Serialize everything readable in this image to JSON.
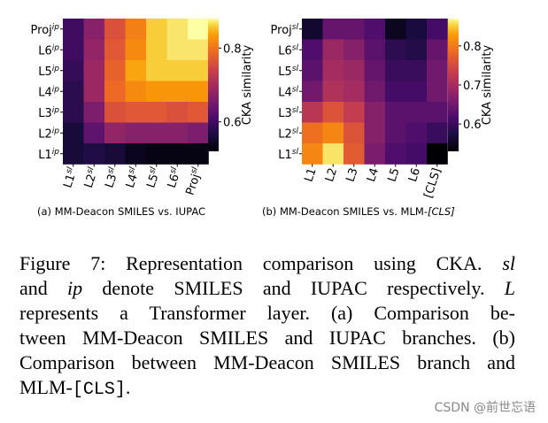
{
  "chart_data": [
    {
      "type": "heatmap",
      "x_labels": [
        {
          "base": "L1",
          "sup": "sl"
        },
        {
          "base": "L2",
          "sup": "sl"
        },
        {
          "base": "L3",
          "sup": "sl"
        },
        {
          "base": "L4",
          "sup": "sl"
        },
        {
          "base": "L5",
          "sup": "sl"
        },
        {
          "base": "L6",
          "sup": "sl"
        },
        {
          "base": "Proj",
          "sup": "sl"
        }
      ],
      "y_labels": [
        {
          "base": "Proj",
          "sup": "ip"
        },
        {
          "base": "L6",
          "sup": "ip"
        },
        {
          "base": "L5",
          "sup": "ip"
        },
        {
          "base": "L4",
          "sup": "ip"
        },
        {
          "base": "L3",
          "sup": "ip"
        },
        {
          "base": "L2",
          "sup": "ip"
        },
        {
          "base": "L1",
          "sup": "ip"
        }
      ],
      "values": [
        [
          0.6,
          0.67,
          0.76,
          0.81,
          0.86,
          0.87,
          0.88
        ],
        [
          0.6,
          0.68,
          0.77,
          0.82,
          0.86,
          0.87,
          0.87
        ],
        [
          0.59,
          0.69,
          0.78,
          0.84,
          0.86,
          0.86,
          0.86
        ],
        [
          0.58,
          0.69,
          0.79,
          0.82,
          0.83,
          0.83,
          0.83
        ],
        [
          0.58,
          0.66,
          0.76,
          0.77,
          0.77,
          0.76,
          0.77
        ],
        [
          0.56,
          0.63,
          0.68,
          0.67,
          0.67,
          0.67,
          0.66
        ],
        [
          0.56,
          0.57,
          0.56,
          0.54,
          0.53,
          0.53,
          0.53
        ]
      ],
      "vmin": 0.52,
      "vmax": 0.88,
      "colorbar_ticks": [
        "0.6",
        "0.8"
      ],
      "colorbar_label": "CKA similarity",
      "colormap": "inferno",
      "subcaption_label": "(a)",
      "subcaption_text": "MM-Deacon SMILES vs. IUPAC"
    },
    {
      "type": "heatmap",
      "x_labels": [
        {
          "base": "L1",
          "sup": ""
        },
        {
          "base": "L2",
          "sup": ""
        },
        {
          "base": "L3",
          "sup": ""
        },
        {
          "base": "L4",
          "sup": ""
        },
        {
          "base": "L5",
          "sup": ""
        },
        {
          "base": "L6",
          "sup": ""
        },
        {
          "base": "[CLS]",
          "sup": ""
        }
      ],
      "y_labels": [
        {
          "base": "Proj",
          "sup": "sl"
        },
        {
          "base": "L6",
          "sup": "sl"
        },
        {
          "base": "L5",
          "sup": "sl"
        },
        {
          "base": "L4",
          "sup": "sl"
        },
        {
          "base": "L3",
          "sup": "sl"
        },
        {
          "base": "L2",
          "sup": "sl"
        },
        {
          "base": "L1",
          "sup": "sl"
        }
      ],
      "values": [
        [
          0.56,
          0.64,
          0.64,
          0.62,
          0.55,
          0.57,
          0.61
        ],
        [
          0.62,
          0.69,
          0.67,
          0.63,
          0.59,
          0.58,
          0.64
        ],
        [
          0.63,
          0.7,
          0.69,
          0.64,
          0.6,
          0.6,
          0.65
        ],
        [
          0.65,
          0.71,
          0.7,
          0.65,
          0.61,
          0.61,
          0.65
        ],
        [
          0.72,
          0.76,
          0.73,
          0.67,
          0.63,
          0.63,
          0.63
        ],
        [
          0.79,
          0.81,
          0.76,
          0.67,
          0.63,
          0.62,
          0.6
        ],
        [
          0.81,
          0.86,
          0.77,
          0.66,
          0.62,
          0.61,
          0.53
        ]
      ],
      "vmin": 0.53,
      "vmax": 0.87,
      "colorbar_ticks": [
        "0.6",
        "0.7",
        "0.8"
      ],
      "colorbar_label": "CKA similarity",
      "colormap": "inferno",
      "subcaption_label": "(b)",
      "subcaption_text": "MM-Deacon SMILES vs. MLM-",
      "subcaption_italic": "[CLS]"
    }
  ],
  "caption": {
    "label": "Figure 7:",
    "line1": "Representation comparison using CKA.",
    "var_sl": "sl",
    "line2_and": "and",
    "var_ip": "ip",
    "line2_rest": "denote SMILES and IUPAC respectively.",
    "var_L": "L",
    "line3": "represents a Transformer layer.  (a) Comparison be-",
    "line4": "tween MM-Deacon SMILES and IUPAC branches. (b)",
    "line5": "Comparison between MM-Deacon SMILES branch and",
    "line6_pre": "MLM-",
    "line6_mono": "[CLS]",
    "line6_post": "."
  },
  "watermark": "CSDN @前世忘语"
}
